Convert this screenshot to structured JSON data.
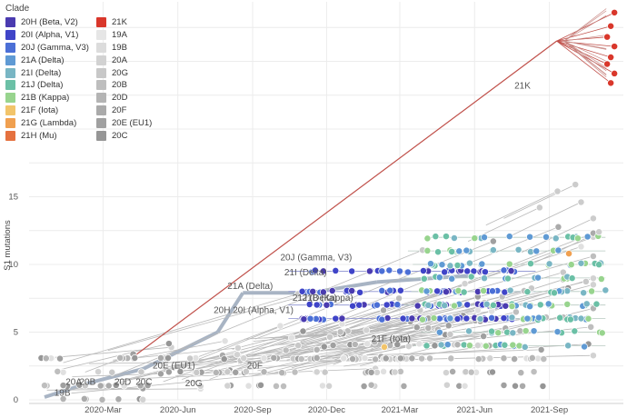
{
  "chart_data": {
    "type": "scatter",
    "ylabel": "S1 mutations",
    "ylim": [
      0,
      19
    ],
    "yticks": [
      "0",
      "5",
      "10",
      "15"
    ],
    "xticks": [
      "2020-Mar",
      "2020-Jun",
      "2020-Sep",
      "2020-Dec",
      "2021-Mar",
      "2021-Jun",
      "2021-Sep"
    ],
    "grid": true,
    "legend_title": "Clade",
    "legend_position": "top-left",
    "legend": [
      {
        "name": "20H (Beta, V2)",
        "color": "#4a3bb0"
      },
      {
        "name": "20I (Alpha, V1)",
        "color": "#3f44c8"
      },
      {
        "name": "20J (Gamma, V3)",
        "color": "#4b6fd6"
      },
      {
        "name": "21A (Delta)",
        "color": "#5f9ad4"
      },
      {
        "name": "21I (Delta)",
        "color": "#79b6c4"
      },
      {
        "name": "21J (Delta)",
        "color": "#6bc0a6"
      },
      {
        "name": "21B (Kappa)",
        "color": "#98d48e"
      },
      {
        "name": "21F (Iota)",
        "color": "#f2c46a"
      },
      {
        "name": "21G (Lambda)",
        "color": "#f0a050"
      },
      {
        "name": "21H (Mu)",
        "color": "#e5713f"
      },
      {
        "name": "21K",
        "color": "#d9372b"
      },
      {
        "name": "19A",
        "color": "#e6e6e6"
      },
      {
        "name": "19B",
        "color": "#dcdcdc"
      },
      {
        "name": "20A",
        "color": "#d2d2d2"
      },
      {
        "name": "20G",
        "color": "#c8c8c8"
      },
      {
        "name": "20B",
        "color": "#bebebe"
      },
      {
        "name": "20D",
        "color": "#b4b4b4"
      },
      {
        "name": "20F",
        "color": "#aaaaaa"
      },
      {
        "name": "20E (EU1)",
        "color": "#a0a0a0"
      },
      {
        "name": "20C",
        "color": "#969696"
      }
    ],
    "annotations": [
      {
        "text": "21K",
        "x": "2021-07-20",
        "y": 23
      },
      {
        "text": "20J (Gamma, V3)",
        "x": "2020-10-05",
        "y": 10.3
      },
      {
        "text": "21I (Delta)",
        "x": "2020-10-10",
        "y": 9.2
      },
      {
        "text": "21A (Delta)",
        "x": "2020-08-01",
        "y": 8.2
      },
      {
        "text": "20H 20I (Alpha, V1)",
        "x": "2020-07-15",
        "y": 6.4
      },
      {
        "text": "21J (Delta)",
        "x": "2020-10-20",
        "y": 7.3
      },
      {
        "text": "21B (Kappa)",
        "x": "2020-11-01",
        "y": 7.3
      },
      {
        "text": "21F (Iota)",
        "x": "2021-01-25",
        "y": 4.3
      },
      {
        "text": "20E (EU1)",
        "x": "2020-05-01",
        "y": 2.3
      },
      {
        "text": "20F",
        "x": "2020-08-25",
        "y": 2.3
      },
      {
        "text": "20G",
        "x": "2020-06-10",
        "y": 1.0
      },
      {
        "text": "20A",
        "x": "2020-01-15",
        "y": 1.1
      },
      {
        "text": "20B",
        "x": "2020-02-01",
        "y": 1.1
      },
      {
        "text": "20D",
        "x": "2020-03-15",
        "y": 1.1
      },
      {
        "text": "20C",
        "x": "2020-04-10",
        "y": 1.1
      },
      {
        "text": "19B",
        "x": "2020-01-01",
        "y": 0.3
      }
    ]
  }
}
